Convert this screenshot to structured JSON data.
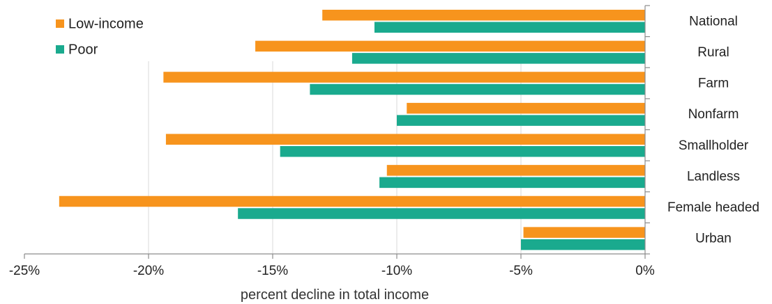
{
  "chart_data": {
    "type": "bar",
    "orientation": "horizontal",
    "categories": [
      "National",
      "Rural",
      "Farm",
      "Nonfarm",
      "Smallholder",
      "Landless",
      "Female headed",
      "Urban"
    ],
    "series": [
      {
        "name": "Low-income",
        "color": "#f7941d",
        "values": [
          -13.0,
          -15.7,
          -19.4,
          -9.6,
          -19.3,
          -10.4,
          -23.6,
          -4.9
        ]
      },
      {
        "name": "Poor",
        "color": "#1aaa8e",
        "values": [
          -10.9,
          -11.8,
          -13.5,
          -10.0,
          -14.7,
          -10.7,
          -16.4,
          -5.0
        ]
      }
    ],
    "xlabel": "percent decline in total income",
    "xlim": [
      -25,
      0
    ],
    "xticks": [
      -25,
      -20,
      -15,
      -10,
      -5,
      0
    ],
    "xtick_labels": [
      "-25%",
      "-20%",
      "-15%",
      "-10%",
      "-5%",
      "0%"
    ],
    "grid": "vertical",
    "legend": "top-left"
  }
}
